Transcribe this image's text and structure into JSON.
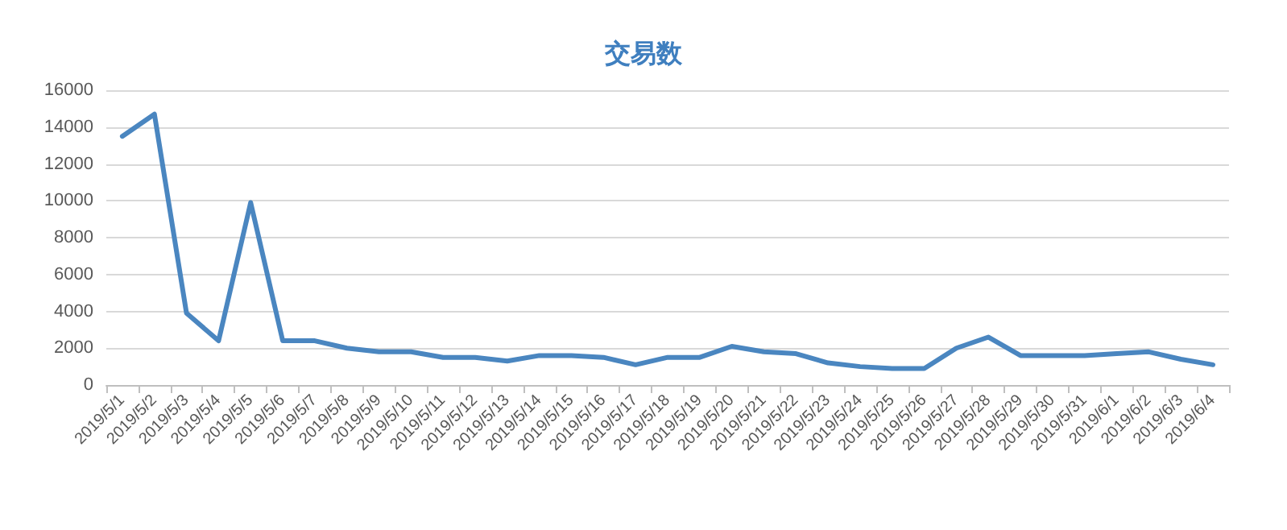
{
  "chart_data": {
    "type": "line",
    "title": "交易数",
    "categories": [
      "2019/5/1",
      "2019/5/2",
      "2019/5/3",
      "2019/5/4",
      "2019/5/5",
      "2019/5/6",
      "2019/5/7",
      "2019/5/8",
      "2019/5/9",
      "2019/5/10",
      "2019/5/11",
      "2019/5/12",
      "2019/5/13",
      "2019/5/14",
      "2019/5/15",
      "2019/5/16",
      "2019/5/17",
      "2019/5/18",
      "2019/5/19",
      "2019/5/20",
      "2019/5/21",
      "2019/5/22",
      "2019/5/23",
      "2019/5/24",
      "2019/5/25",
      "2019/5/26",
      "2019/5/27",
      "2019/5/28",
      "2019/5/29",
      "2019/5/30",
      "2019/5/31",
      "2019/6/1",
      "2019/6/2",
      "2019/6/3",
      "2019/6/4"
    ],
    "series": [
      {
        "color": "#4a86c0",
        "values": [
          13500,
          14700,
          3900,
          2400,
          9900,
          2400,
          2400,
          2000,
          1800,
          1800,
          1500,
          1500,
          1300,
          1600,
          1600,
          1500,
          1100,
          1500,
          1500,
          2100,
          1800,
          1700,
          1200,
          1000,
          900,
          900,
          2000,
          2600,
          1600,
          1600,
          1600,
          1700,
          1800,
          1400,
          1100
        ]
      }
    ],
    "ylim": [
      0,
      16000
    ],
    "yticks": [
      0,
      2000,
      4000,
      6000,
      8000,
      10000,
      12000,
      14000,
      16000
    ],
    "grid": "y",
    "marker": "none",
    "line_style": "solid"
  }
}
